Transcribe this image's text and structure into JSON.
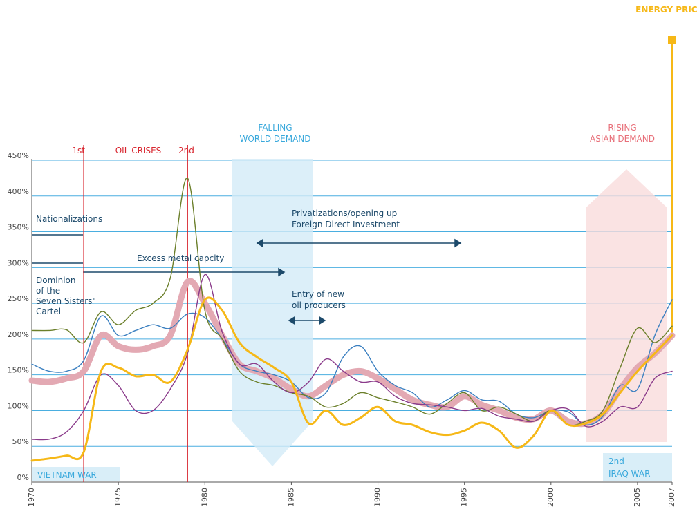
{
  "chart_data": {
    "type": "line",
    "x": [
      1970,
      1971,
      1972,
      1973,
      1974,
      1975,
      1976,
      1977,
      1978,
      1979,
      1980,
      1981,
      1982,
      1983,
      1984,
      1985,
      1986,
      1987,
      1988,
      1989,
      1990,
      1991,
      1992,
      1993,
      1994,
      1995,
      1996,
      1997,
      1998,
      1999,
      2000,
      2001,
      2002,
      2003,
      2004,
      2005,
      2006,
      2007
    ],
    "xlim": [
      1970,
      2007
    ],
    "xticks": [
      1970,
      1975,
      1980,
      1985,
      1990,
      1995,
      2000,
      2005,
      2007
    ],
    "ylim": [
      0,
      450
    ],
    "yticks": [
      {
        "value": 0,
        "label": "0%"
      },
      {
        "value": 50,
        "label": "50%"
      },
      {
        "value": 100,
        "label": "100%"
      },
      {
        "value": 150,
        "label": "150%"
      },
      {
        "value": 200,
        "label": "200%"
      },
      {
        "value": 250,
        "label": "250%"
      },
      {
        "value": 300,
        "label": "300%"
      },
      {
        "value": 350,
        "label": "350%"
      },
      {
        "value": 400,
        "label": "400%"
      },
      {
        "value": 450,
        "label": "450%"
      }
    ],
    "grid": true,
    "event_lines": [
      1973,
      1979
    ],
    "series": [
      {
        "color": "#e3a9b3",
        "width": 9,
        "values": [
          142,
          140,
          145,
          155,
          205,
          190,
          185,
          190,
          205,
          280,
          250,
          205,
          165,
          155,
          145,
          130,
          120,
          135,
          150,
          155,
          145,
          130,
          115,
          108,
          105,
          120,
          108,
          100,
          90,
          88,
          100,
          85,
          82,
          95,
          130,
          160,
          180,
          205
        ]
      },
      {
        "color": "#3a7fc0",
        "width": 1.4,
        "values": [
          165,
          155,
          155,
          170,
          232,
          205,
          212,
          220,
          215,
          235,
          230,
          200,
          165,
          155,
          150,
          140,
          118,
          125,
          175,
          190,
          155,
          135,
          125,
          105,
          115,
          128,
          115,
          113,
          95,
          90,
          100,
          98,
          80,
          92,
          135,
          130,
          205,
          255
        ]
      },
      {
        "color": "#6b7f2a",
        "width": 1.4,
        "values": [
          212,
          212,
          213,
          195,
          238,
          220,
          240,
          250,
          285,
          425,
          240,
          200,
          155,
          140,
          135,
          125,
          120,
          105,
          110,
          125,
          118,
          112,
          105,
          95,
          110,
          125,
          100,
          105,
          95,
          85,
          100,
          80,
          85,
          100,
          160,
          215,
          195,
          218
        ]
      },
      {
        "color": "#8a3a8a",
        "width": 1.4,
        "values": [
          60,
          60,
          70,
          100,
          150,
          135,
          100,
          100,
          130,
          180,
          290,
          210,
          165,
          165,
          140,
          125,
          140,
          172,
          155,
          140,
          140,
          120,
          110,
          108,
          105,
          100,
          103,
          92,
          88,
          85,
          100,
          102,
          78,
          85,
          105,
          105,
          145,
          155
        ]
      },
      {
        "name": "ENERGY PRICE",
        "color": "#f6b817",
        "width": 3,
        "values": [
          30,
          33,
          37,
          42,
          155,
          160,
          148,
          150,
          140,
          185,
          255,
          240,
          195,
          175,
          160,
          140,
          82,
          100,
          80,
          90,
          105,
          85,
          80,
          70,
          66,
          72,
          83,
          72,
          48,
          65,
          100,
          80,
          82,
          95,
          125,
          155,
          180,
          205
        ]
      }
    ],
    "annotations": [
      {
        "text": [
          "FALLING",
          "WORLD DEMAND"
        ]
      },
      {
        "text": [
          "RISING",
          "ASIAN DEMAND"
        ]
      },
      {
        "text": [
          "1st"
        ]
      },
      {
        "text": [
          "OIL CRISES"
        ]
      },
      {
        "text": [
          "2nd"
        ]
      },
      {
        "text": [
          "Nationalizations"
        ]
      },
      {
        "text": [
          "Privatizations/opening up",
          "Foreign Direct Investment"
        ]
      },
      {
        "text": [
          "Excess metal capcity"
        ]
      },
      {
        "text": [
          "Dominion",
          "of the",
          "Seven Sisters\"",
          "Cartel"
        ]
      },
      {
        "text": [
          "Entry of new",
          "oil producers"
        ]
      },
      {
        "text": [
          "VIETNAM WAR"
        ]
      },
      {
        "text": [
          "2nd",
          "IRAQ WAR"
        ]
      }
    ]
  }
}
